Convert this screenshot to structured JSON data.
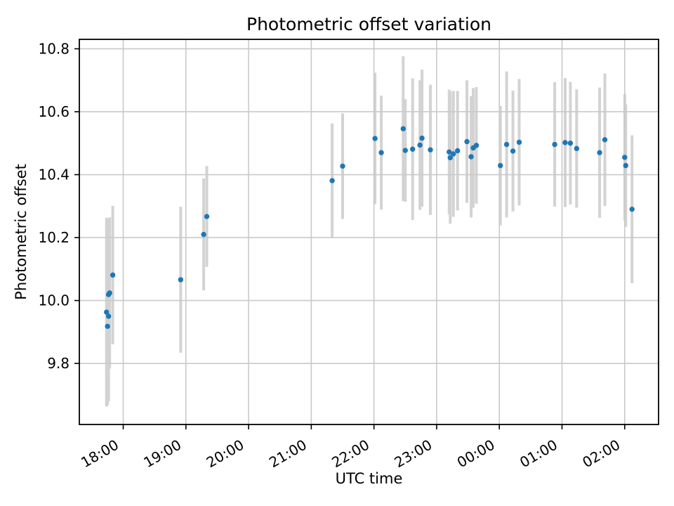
{
  "chart_data": {
    "type": "scatter",
    "title": "Photometric offset variation",
    "xlabel": "UTC time",
    "ylabel": "Photometric offset",
    "grid": true,
    "legend": "none",
    "marker_color": "#1f77b4",
    "errorbar_color": "#d3d3d3",
    "axis_color": "#000000",
    "grid_color": "#c9c9c9",
    "x_tick_labels": [
      "18:00",
      "19:00",
      "20:00",
      "21:00",
      "22:00",
      "23:00",
      "00:00",
      "01:00",
      "02:00"
    ],
    "x_tick_hours": [
      18,
      19,
      20,
      21,
      22,
      23,
      24,
      25,
      26
    ],
    "y_tick_labels": [
      "10.8",
      "10.6",
      "10.4",
      "10.2",
      "10.0",
      "9.8"
    ],
    "y_tick_values": [
      10.8,
      10.6,
      10.4,
      10.2,
      10.0,
      9.8
    ],
    "x_range_hours": [
      17.3,
      26.54
    ],
    "y_range": [
      9.606,
      10.83
    ],
    "points": [
      {
        "time": "17:44",
        "value": 9.963,
        "err": 0.3
      },
      {
        "time": "17:45",
        "value": 9.918,
        "err": 0.25
      },
      {
        "time": "17:46",
        "value": 9.95,
        "err": 0.27
      },
      {
        "time": "17:46",
        "value": 10.019,
        "err": 0.24
      },
      {
        "time": "17:47",
        "value": 10.024,
        "err": 0.24
      },
      {
        "time": "17:50",
        "value": 10.081,
        "err": 0.22
      },
      {
        "time": "18:55",
        "value": 10.066,
        "err": 0.232
      },
      {
        "time": "19:17",
        "value": 10.21,
        "err": 0.178
      },
      {
        "time": "19:20",
        "value": 10.267,
        "err": 0.16
      },
      {
        "time": "21:20",
        "value": 10.381,
        "err": 0.182
      },
      {
        "time": "21:30",
        "value": 10.427,
        "err": 0.168
      },
      {
        "time": "22:01",
        "value": 10.515,
        "err": 0.209
      },
      {
        "time": "22:07",
        "value": 10.47,
        "err": 0.181
      },
      {
        "time": "22:28",
        "value": 10.546,
        "err": 0.23
      },
      {
        "time": "22:30",
        "value": 10.477,
        "err": 0.163
      },
      {
        "time": "22:37",
        "value": 10.481,
        "err": 0.225
      },
      {
        "time": "22:44",
        "value": 10.494,
        "err": 0.206
      },
      {
        "time": "22:46",
        "value": 10.516,
        "err": 0.218
      },
      {
        "time": "22:54",
        "value": 10.479,
        "err": 0.207
      },
      {
        "time": "23:12",
        "value": 10.472,
        "err": 0.198
      },
      {
        "time": "23:13",
        "value": 10.454,
        "err": 0.21
      },
      {
        "time": "23:16",
        "value": 10.466,
        "err": 0.2
      },
      {
        "time": "23:20",
        "value": 10.476,
        "err": 0.19
      },
      {
        "time": "23:29",
        "value": 10.505,
        "err": 0.195
      },
      {
        "time": "23:33",
        "value": 10.457,
        "err": 0.193
      },
      {
        "time": "23:35",
        "value": 10.485,
        "err": 0.19
      },
      {
        "time": "23:38",
        "value": 10.493,
        "err": 0.185
      },
      {
        "time": "00:01",
        "value": 10.429,
        "err": 0.19
      },
      {
        "time": "00:07",
        "value": 10.496,
        "err": 0.232
      },
      {
        "time": "00:13",
        "value": 10.475,
        "err": 0.192
      },
      {
        "time": "00:19",
        "value": 10.503,
        "err": 0.201
      },
      {
        "time": "00:53",
        "value": 10.496,
        "err": 0.198
      },
      {
        "time": "01:03",
        "value": 10.502,
        "err": 0.205
      },
      {
        "time": "01:08",
        "value": 10.5,
        "err": 0.195
      },
      {
        "time": "01:14",
        "value": 10.483,
        "err": 0.188
      },
      {
        "time": "01:36",
        "value": 10.47,
        "err": 0.207
      },
      {
        "time": "01:41",
        "value": 10.511,
        "err": 0.211
      },
      {
        "time": "02:00",
        "value": 10.455,
        "err": 0.201
      },
      {
        "time": "02:01",
        "value": 10.429,
        "err": 0.195
      },
      {
        "time": "02:07",
        "value": 10.29,
        "err": 0.235
      }
    ]
  }
}
